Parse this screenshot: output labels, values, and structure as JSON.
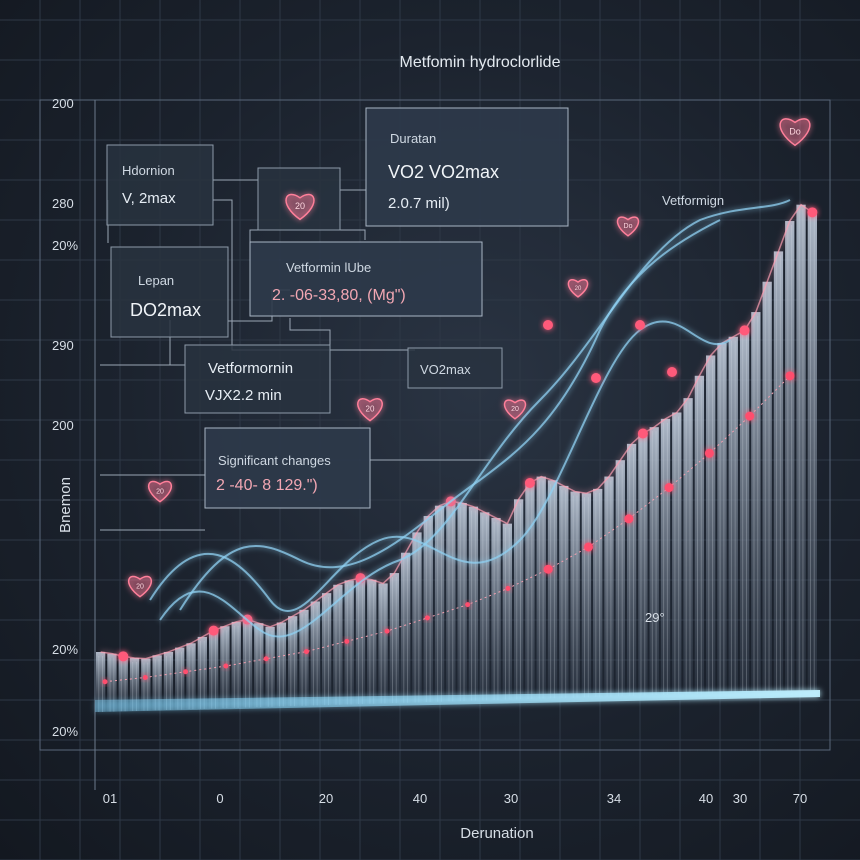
{
  "title": "Metfomin hydroclorlide",
  "xlabel": "Derunation",
  "ylabel": "Bnemon",
  "colors": {
    "bars": "#7f93ad",
    "glow_line": "#7fd6ff",
    "ribbon": "#8fd0f2",
    "marker": "#ff5a7a",
    "heart": "#ff7f9a",
    "grid": "#3d4a5a"
  },
  "annotations": [
    {
      "id": "hdornion",
      "line1": "Hdornion",
      "line2": "V, 2max"
    },
    {
      "id": "duratan",
      "line1": "Duratan",
      "line2": "VO2 VO2max",
      "line3": "2.0.7   mil)"
    },
    {
      "id": "vetformornin-lube",
      "line1": "Vetformin lUbe",
      "line2": "2. -06-33,80, (Mg\")"
    },
    {
      "id": "lepan",
      "line1": "Lepan",
      "line2": "DO2max"
    },
    {
      "id": "vetformornin",
      "line1": "Vetformornin",
      "line2": "VJX2.2 min"
    },
    {
      "id": "vo2max",
      "line1": "VO2max"
    },
    {
      "id": "significant",
      "line1": "Significant changes",
      "line2": "2 -40- 8 129.\")"
    },
    {
      "id": "vetformign",
      "line1": "Vetformign"
    }
  ],
  "hearts": [
    "20",
    "20",
    "20",
    "20",
    "20",
    "20",
    "Do"
  ],
  "point_label": "29°",
  "chart_data": {
    "type": "bar",
    "title": "Metfomin hydroclorlide",
    "xlabel": "Derunation",
    "ylabel": "Bnemon",
    "x_ticks": [
      "01",
      "0",
      "20",
      "40",
      "30",
      "34",
      "40",
      "30",
      "70"
    ],
    "y_ticks": [
      "200",
      "280",
      "20%",
      "290",
      "200",
      "20%",
      "20%"
    ],
    "grid": true,
    "series": [
      {
        "type": "bar",
        "values": [
          60,
          58,
          55,
          53,
          52,
          55,
          58,
          62,
          66,
          72,
          78,
          82,
          86,
          88,
          84,
          80,
          84,
          90,
          96,
          104,
          112,
          120,
          124,
          126,
          124,
          120,
          130,
          150,
          170,
          186,
          196,
          200,
          198,
          194,
          188,
          182,
          176,
          200,
          216,
          222,
          218,
          212,
          206,
          204,
          208,
          220,
          236,
          252,
          262,
          268,
          276,
          282,
          296,
          318,
          338,
          350,
          356,
          362,
          380,
          410,
          440,
          470,
          486,
          478
        ]
      },
      {
        "type": "line",
        "values": [
          20,
          22,
          25,
          28,
          32,
          36,
          42,
          48,
          56,
          64,
          74,
          86,
          100,
          118,
          138,
          160,
          184,
          210
        ]
      }
    ]
  }
}
